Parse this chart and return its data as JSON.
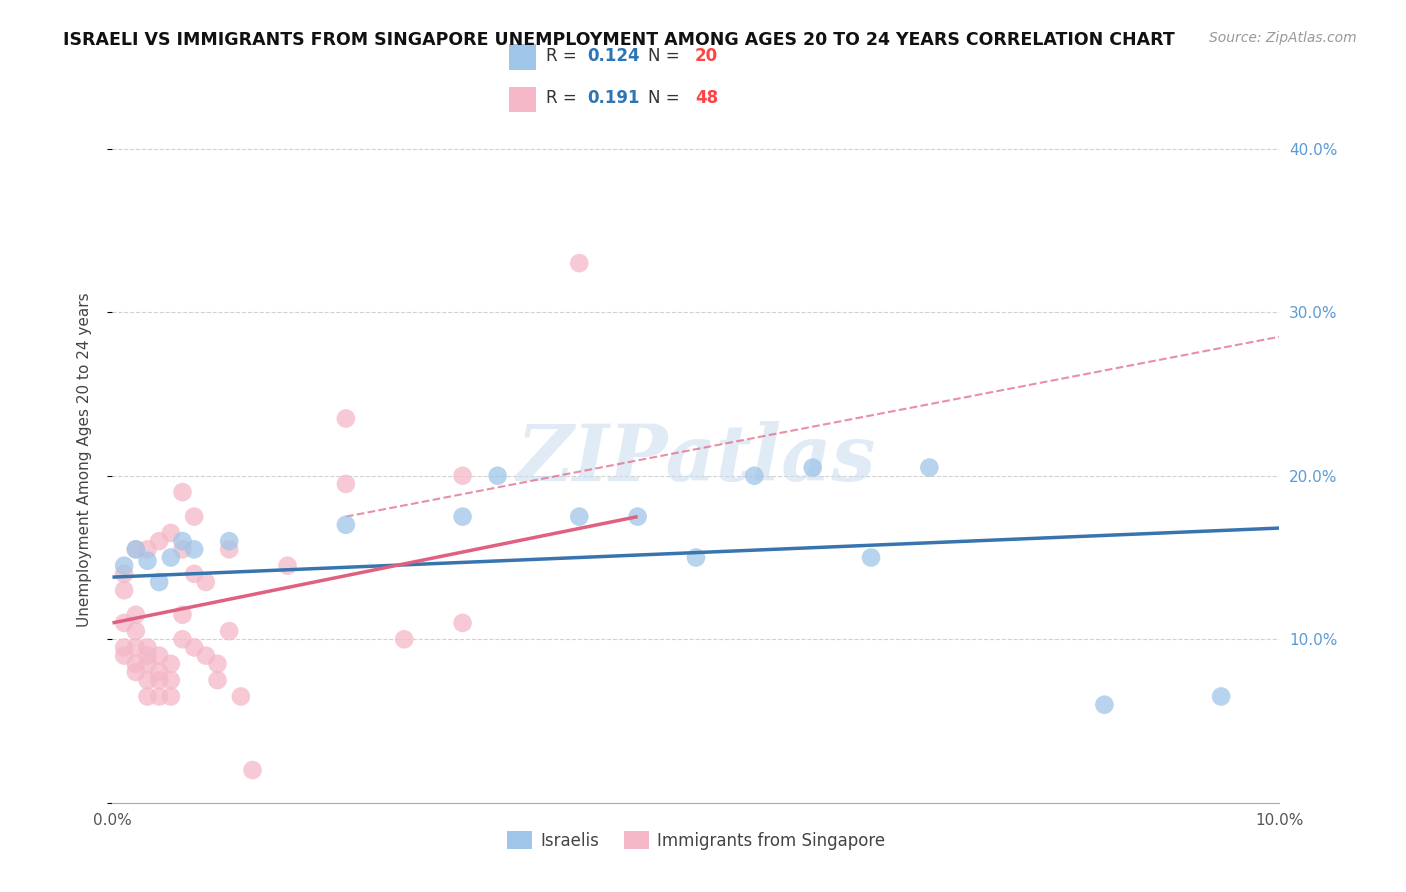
{
  "title": "ISRAELI VS IMMIGRANTS FROM SINGAPORE UNEMPLOYMENT AMONG AGES 20 TO 24 YEARS CORRELATION CHART",
  "source": "Source: ZipAtlas.com",
  "ylabel": "Unemployment Among Ages 20 to 24 years",
  "xlim": [
    0.0,
    0.1
  ],
  "ylim": [
    0.0,
    0.42
  ],
  "xtick_positions": [
    0.0,
    0.02,
    0.04,
    0.06,
    0.08,
    0.1
  ],
  "xtick_labels": [
    "0.0%",
    "",
    "",
    "",
    "",
    "10.0%"
  ],
  "ytick_positions": [
    0.0,
    0.1,
    0.2,
    0.3,
    0.4
  ],
  "ytick_labels": [
    "",
    "10.0%",
    "20.0%",
    "30.0%",
    "40.0%"
  ],
  "israeli_color": "#9FC5E8",
  "singapore_color": "#F4B8C8",
  "israeli_line_color": "#3874AE",
  "singapore_line_color": "#E06080",
  "israeli_R": 0.124,
  "israeli_N": 20,
  "singapore_R": 0.191,
  "singapore_N": 48,
  "watermark": "ZIPatlas",
  "background_color": "#ffffff",
  "grid_color": "#cccccc",
  "legend_R_color": "#2E75B6",
  "legend_N_color": "#FF0000",
  "israeli_points_x": [
    0.001,
    0.002,
    0.003,
    0.004,
    0.005,
    0.006,
    0.007,
    0.01,
    0.02,
    0.03,
    0.033,
    0.04,
    0.045,
    0.05,
    0.055,
    0.06,
    0.065,
    0.07,
    0.085,
    0.095
  ],
  "israeli_points_y": [
    0.145,
    0.155,
    0.148,
    0.135,
    0.15,
    0.16,
    0.155,
    0.16,
    0.17,
    0.175,
    0.2,
    0.175,
    0.175,
    0.15,
    0.2,
    0.205,
    0.15,
    0.205,
    0.06,
    0.065
  ],
  "singapore_points_x": [
    0.001,
    0.001,
    0.001,
    0.001,
    0.001,
    0.002,
    0.002,
    0.002,
    0.002,
    0.002,
    0.002,
    0.003,
    0.003,
    0.003,
    0.003,
    0.003,
    0.003,
    0.004,
    0.004,
    0.004,
    0.004,
    0.004,
    0.005,
    0.005,
    0.005,
    0.005,
    0.006,
    0.006,
    0.006,
    0.006,
    0.007,
    0.007,
    0.007,
    0.008,
    0.008,
    0.009,
    0.009,
    0.01,
    0.01,
    0.011,
    0.012,
    0.015,
    0.02,
    0.02,
    0.025,
    0.03,
    0.03,
    0.04
  ],
  "singapore_points_y": [
    0.09,
    0.095,
    0.11,
    0.13,
    0.14,
    0.08,
    0.085,
    0.095,
    0.105,
    0.115,
    0.155,
    0.065,
    0.075,
    0.085,
    0.09,
    0.095,
    0.155,
    0.065,
    0.075,
    0.08,
    0.09,
    0.16,
    0.065,
    0.075,
    0.085,
    0.165,
    0.1,
    0.115,
    0.155,
    0.19,
    0.095,
    0.14,
    0.175,
    0.09,
    0.135,
    0.075,
    0.085,
    0.105,
    0.155,
    0.065,
    0.02,
    0.145,
    0.195,
    0.235,
    0.1,
    0.11,
    0.2,
    0.33
  ],
  "israeli_line": [
    0.0,
    0.138,
    0.1,
    0.168
  ],
  "singapore_solid_line": [
    0.0,
    0.11,
    0.045,
    0.175
  ],
  "singapore_dashed_line": [
    0.02,
    0.175,
    0.1,
    0.285
  ]
}
